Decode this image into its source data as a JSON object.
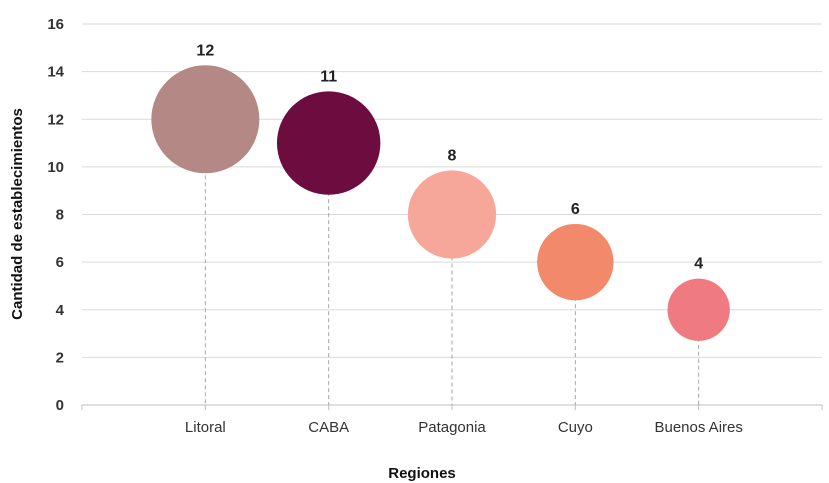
{
  "chart_data": {
    "type": "scatter",
    "title": "",
    "xlabel": "Regiones",
    "ylabel": "Cantidad de establecimientos",
    "ylim": [
      0,
      16
    ],
    "yticks": [
      0,
      2,
      4,
      6,
      8,
      10,
      12,
      14,
      16
    ],
    "grid": true,
    "legend": "none",
    "categories": [
      "Litoral",
      "CABA",
      "Patagonia",
      "Cuyo",
      "Buenos Aires"
    ],
    "values": [
      12,
      11,
      8,
      6,
      4
    ],
    "data_labels": [
      "12",
      "11",
      "8",
      "6",
      "4"
    ],
    "colors": [
      "#b38885",
      "#6d0c3e",
      "#f6a79a",
      "#f2896b",
      "#ef7a82"
    ],
    "drop_lines": true
  }
}
